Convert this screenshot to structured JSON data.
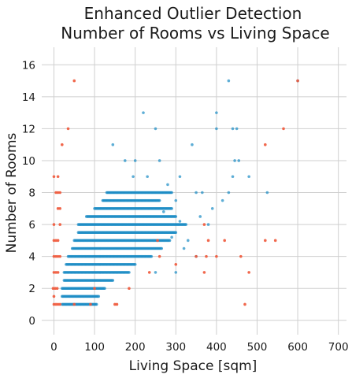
{
  "chart_data": {
    "type": "scatter",
    "title": "Enhanced Outlier Detection",
    "subtitle": "Number of Rooms vs Living Space",
    "xlabel": "Living Space [sqm]",
    "ylabel": "Number of Rooms",
    "xlim": [
      -30,
      720
    ],
    "ylim": [
      -0.9,
      17.1
    ],
    "xticks": [
      "0",
      "100",
      "200",
      "300",
      "400",
      "500",
      "600",
      "700"
    ],
    "yticks": [
      "0",
      "2",
      "4",
      "6",
      "8",
      "10",
      "12",
      "14",
      "16"
    ],
    "grid": true,
    "legend": "none",
    "colors": {
      "inlier": "#1a8bc4",
      "outlier": "#f0583a"
    },
    "series": [
      {
        "role": "inlier",
        "bands": [
          [
            1,
            20,
            105
          ],
          [
            1.5,
            20,
            110
          ],
          [
            2,
            20,
            125
          ],
          [
            2.5,
            25,
            145
          ],
          [
            3,
            25,
            185
          ],
          [
            3.5,
            30,
            200
          ],
          [
            4,
            35,
            240
          ],
          [
            4.5,
            45,
            265
          ],
          [
            5,
            50,
            285
          ],
          [
            5.5,
            60,
            300
          ],
          [
            6,
            60,
            325
          ],
          [
            6.5,
            80,
            300
          ],
          [
            7,
            100,
            290
          ],
          [
            7.5,
            120,
            260
          ],
          [
            8,
            130,
            290
          ]
        ],
        "points": [
          [
            330,
            5
          ],
          [
            350,
            4
          ],
          [
            300,
            3
          ],
          [
            380,
            6
          ],
          [
            360,
            6.5
          ],
          [
            320,
            4.5
          ],
          [
            145,
            11
          ],
          [
            175,
            10
          ],
          [
            200,
            10
          ],
          [
            260,
            10
          ],
          [
            230,
            9
          ],
          [
            195,
            9
          ],
          [
            310,
            9
          ],
          [
            340,
            11
          ],
          [
            350,
            8
          ],
          [
            365,
            8
          ],
          [
            390,
            7
          ],
          [
            415,
            7.5
          ],
          [
            430,
            8
          ],
          [
            440,
            9
          ],
          [
            445,
            10
          ],
          [
            455,
            10
          ],
          [
            480,
            9
          ],
          [
            525,
            8
          ],
          [
            220,
            13
          ],
          [
            250,
            12
          ],
          [
            400,
            13
          ],
          [
            400,
            12
          ],
          [
            440,
            12
          ],
          [
            450,
            12
          ],
          [
            430,
            15
          ],
          [
            600,
            15
          ],
          [
            280,
            8.5
          ],
          [
            300,
            7.5
          ],
          [
            270,
            6.8
          ],
          [
            250,
            3
          ],
          [
            290,
            5.2
          ],
          [
            310,
            6.2
          ]
        ]
      },
      {
        "role": "outlier",
        "points": [
          [
            0,
            1
          ],
          [
            5,
            1
          ],
          [
            10,
            1
          ],
          [
            15,
            1
          ],
          [
            50,
            1
          ],
          [
            90,
            1
          ],
          [
            150,
            1
          ],
          [
            155,
            1
          ],
          [
            0,
            1.5
          ],
          [
            -2,
            2
          ],
          [
            3,
            2
          ],
          [
            8,
            2
          ],
          [
            100,
            2
          ],
          [
            185,
            2
          ],
          [
            0,
            3
          ],
          [
            5,
            3
          ],
          [
            10,
            3
          ],
          [
            235,
            3
          ],
          [
            370,
            3
          ],
          [
            480,
            3
          ],
          [
            0,
            4
          ],
          [
            5,
            4
          ],
          [
            10,
            4
          ],
          [
            15,
            4
          ],
          [
            260,
            4
          ],
          [
            350,
            4
          ],
          [
            375,
            4
          ],
          [
            400,
            4
          ],
          [
            460,
            4
          ],
          [
            0,
            5
          ],
          [
            5,
            5
          ],
          [
            10,
            5
          ],
          [
            380,
            5
          ],
          [
            420,
            5
          ],
          [
            520,
            5
          ],
          [
            545,
            5
          ],
          [
            0,
            6
          ],
          [
            15,
            6
          ],
          [
            370,
            6
          ],
          [
            10,
            7
          ],
          [
            15,
            7
          ],
          [
            5,
            8
          ],
          [
            10,
            8
          ],
          [
            15,
            8
          ],
          [
            0,
            9
          ],
          [
            10,
            9
          ],
          [
            20,
            11
          ],
          [
            35,
            12
          ],
          [
            565,
            12
          ],
          [
            520,
            11
          ],
          [
            50,
            15
          ],
          [
            600,
            15
          ],
          [
            470,
            1
          ],
          [
            300,
            3.5
          ],
          [
            255,
            5
          ]
        ]
      }
    ]
  }
}
